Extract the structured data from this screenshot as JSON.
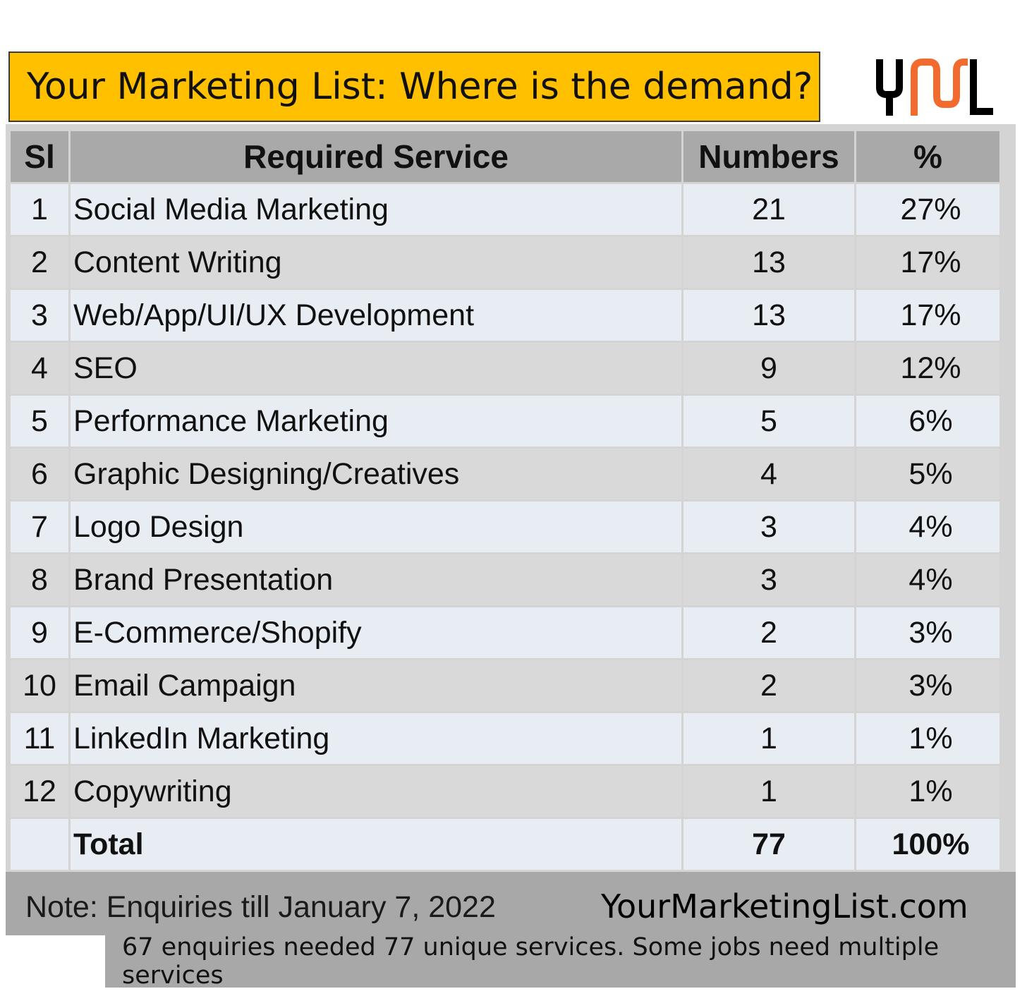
{
  "header": {
    "title": "Your Marketing List: Where is the demand?",
    "logo_text": "YML",
    "title_bg": "#FFC000",
    "logo_colors": [
      "#000000",
      "#F26A2E"
    ]
  },
  "chart_data": {
    "type": "table",
    "columns": [
      "Sl",
      "Required Service",
      "Numbers",
      "%"
    ],
    "rows": [
      [
        "1",
        "Social Media Marketing",
        "21",
        "27%"
      ],
      [
        "2",
        "Content Writing",
        "13",
        "17%"
      ],
      [
        "3",
        "Web/App/UI/UX Development",
        "13",
        "17%"
      ],
      [
        "4",
        "SEO",
        "9",
        "12%"
      ],
      [
        "5",
        "Performance Marketing",
        "5",
        "6%"
      ],
      [
        "6",
        "Graphic Designing/Creatives",
        "4",
        "5%"
      ],
      [
        "7",
        "Logo Design",
        "3",
        "4%"
      ],
      [
        "8",
        "Brand Presentation",
        "3",
        "4%"
      ],
      [
        "9",
        "E-Commerce/Shopify",
        "2",
        "3%"
      ],
      [
        "10",
        "Email Campaign",
        "2",
        "3%"
      ],
      [
        "11",
        "LinkedIn Marketing",
        "1",
        "1%"
      ],
      [
        "12",
        "Copywriting",
        "1",
        "1%"
      ]
    ],
    "total": [
      "",
      "Total",
      "77",
      "100%"
    ]
  },
  "footer": {
    "note": "Note: Enquiries till January 7, 2022",
    "site": "YourMarketingList.com",
    "caption": "67 enquiries needed 77 unique services. Some jobs need multiple services"
  }
}
